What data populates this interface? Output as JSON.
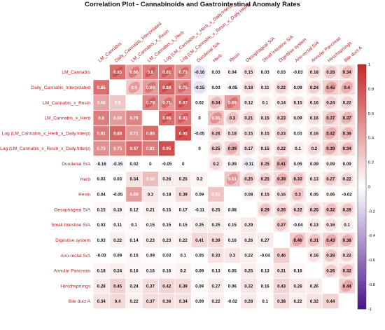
{
  "chart_data": {
    "type": "heatmap",
    "title": "Correlation Plot - Cannabinoids and Gastrointestinal Anomaly Rates",
    "upper_style": "ellipse",
    "lower_style": "number",
    "diagonal": "blank",
    "variables": [
      "LM_Cannabis",
      "Daily_Cannabis_Interpolated",
      "LM_Cannabis_x_Resin",
      "LM_Cannabis_x_Herb",
      "Log (LM_Cannabis_x_Herb_x_Daily.Interp)",
      "Log (LM_Cannabis_x_Resin_x_Daily.Interp)",
      "Duodenal S/A",
      "Herb",
      "Resin",
      "Oesophageal S/A",
      "Small Intestine S/A",
      "Digestive system",
      "Ano-rectal S/A",
      "Annular Pancreas",
      "Hirschsprungs",
      "Bile duct A"
    ],
    "matrix": [
      [
        null,
        0.85,
        0.66,
        0.8,
        0.81,
        0.73,
        -0.16,
        0.03,
        0.04,
        0.15,
        0.03,
        0.03,
        -0.03,
        0.18,
        0.28,
        0.34
      ],
      [
        0.85,
        null,
        0.5,
        0.69,
        0.88,
        0.75,
        -0.15,
        0.03,
        -0.05,
        0.18,
        0.11,
        0.22,
        0.09,
        0.24,
        0.45,
        0.4
      ],
      [
        0.66,
        0.5,
        null,
        0.78,
        0.71,
        0.87,
        0.02,
        0.34,
        0.69,
        0.12,
        0.1,
        0.14,
        0.15,
        0.16,
        0.24,
        0.22
      ],
      [
        0.8,
        0.69,
        0.78,
        null,
        0.86,
        0.81,
        0,
        0.55,
        0.3,
        0.21,
        0.15,
        0.23,
        0.09,
        0.16,
        0.37,
        0.37
      ],
      [
        0.81,
        0.88,
        0.71,
        0.86,
        null,
        0.95,
        -0.05,
        0.26,
        0.18,
        0.15,
        0.15,
        0.23,
        0.03,
        0.16,
        0.42,
        0.36
      ],
      [
        0.73,
        0.75,
        0.87,
        0.81,
        0.95,
        null,
        0,
        0.25,
        0.39,
        0.17,
        0.15,
        0.22,
        0.1,
        0.2,
        0.39,
        0.34
      ],
      [
        -0.16,
        -0.15,
        0.02,
        0,
        -0.05,
        0,
        null,
        0.2,
        0.09,
        -0.11,
        0.25,
        0.41,
        0.05,
        0.09,
        0.09,
        0.09
      ],
      [
        0.03,
        0.03,
        0.34,
        0.55,
        0.26,
        0.25,
        0.2,
        null,
        0.51,
        0.25,
        0.25,
        0.39,
        0.33,
        0.13,
        0.27,
        0.22
      ],
      [
        0.04,
        -0.05,
        0.69,
        0.3,
        0.18,
        0.39,
        0.09,
        0.51,
        null,
        0.08,
        0.15,
        0.16,
        0.3,
        0.05,
        0.06,
        -0.02
      ],
      [
        0.15,
        0.18,
        0.12,
        0.21,
        0.15,
        0.17,
        -0.11,
        0.25,
        0.08,
        null,
        0.29,
        0.26,
        0.22,
        0.25,
        0.32,
        0.28
      ],
      [
        0.03,
        0.11,
        0.1,
        0.15,
        0.15,
        0.15,
        0.25,
        0.25,
        0.15,
        0.29,
        null,
        0.27,
        -0.04,
        0.13,
        0.16,
        0.1
      ],
      [
        0.03,
        0.22,
        0.14,
        0.23,
        0.23,
        0.22,
        0.41,
        0.39,
        0.16,
        0.26,
        0.27,
        null,
        0.46,
        0.31,
        0.43,
        0.38
      ],
      [
        -0.03,
        0.09,
        0.15,
        0.09,
        0.03,
        0.1,
        0.05,
        0.33,
        0.3,
        0.22,
        -0.04,
        0.46,
        null,
        0.16,
        0.28,
        0.22
      ],
      [
        0.18,
        0.24,
        0.16,
        0.16,
        0.16,
        0.2,
        0.09,
        0.13,
        0.05,
        0.25,
        0.13,
        0.31,
        0.16,
        null,
        0.26,
        0.32
      ],
      [
        0.28,
        0.45,
        0.24,
        0.37,
        0.42,
        0.39,
        0.09,
        0.27,
        0.06,
        0.32,
        0.16,
        0.43,
        0.28,
        0.26,
        null,
        0.44
      ],
      [
        0.34,
        0.4,
        0.22,
        0.37,
        0.36,
        0.34,
        0.09,
        0.22,
        -0.02,
        0.28,
        0.1,
        0.38,
        0.22,
        0.32,
        0.44,
        null
      ]
    ],
    "colorbar": {
      "range": [
        -1,
        1
      ],
      "ticks": [
        "1",
        "0.8",
        "0.6",
        "0.4",
        "0.2",
        "0",
        "-0.2",
        "-0.4",
        "-0.6",
        "-0.8",
        "-1"
      ]
    },
    "colors": {
      "positive": "#c62828",
      "zero": "#ffffff",
      "negative": "#4a148c",
      "label": "#b71c1c",
      "grid": "#ffffff"
    }
  }
}
